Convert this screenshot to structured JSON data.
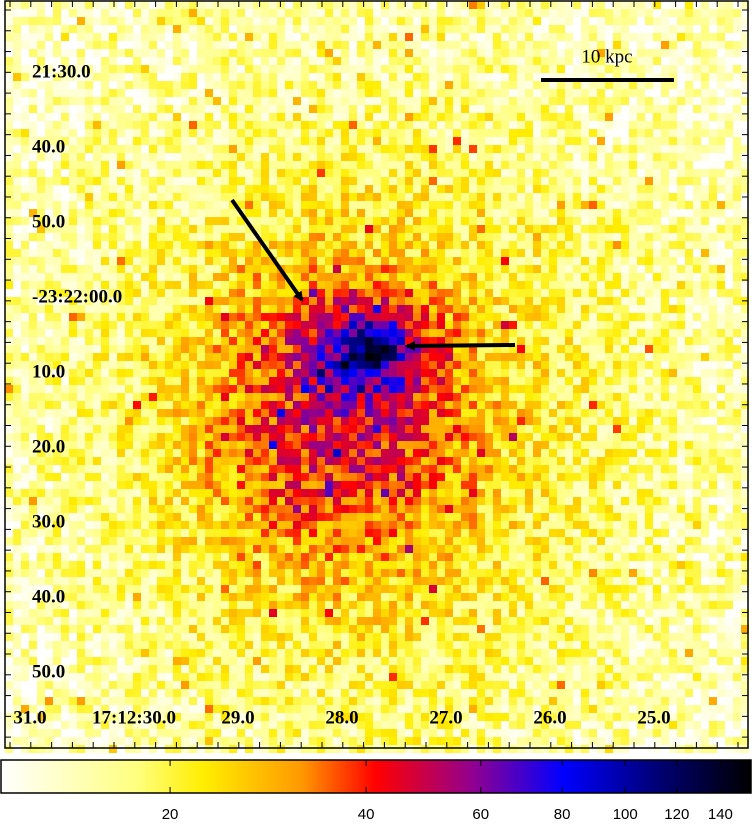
{
  "axes": {
    "ra_labels": [
      "31.0",
      "17:12:30.0",
      "29.0",
      "28.0",
      "27.0",
      "26.0",
      "25.0"
    ],
    "dec_labels": [
      "21:30.0",
      "40.0",
      "50.0",
      "-23:22:00.0",
      "10.0",
      "20.0",
      "30.0",
      "40.0",
      "50.0"
    ]
  },
  "scale_bar": {
    "label": "10 kpc"
  },
  "colorbar": {
    "scale": "log",
    "lim": [
      11,
      156
    ],
    "ticks": [
      20,
      40,
      60,
      80,
      100,
      120,
      140
    ]
  }
}
